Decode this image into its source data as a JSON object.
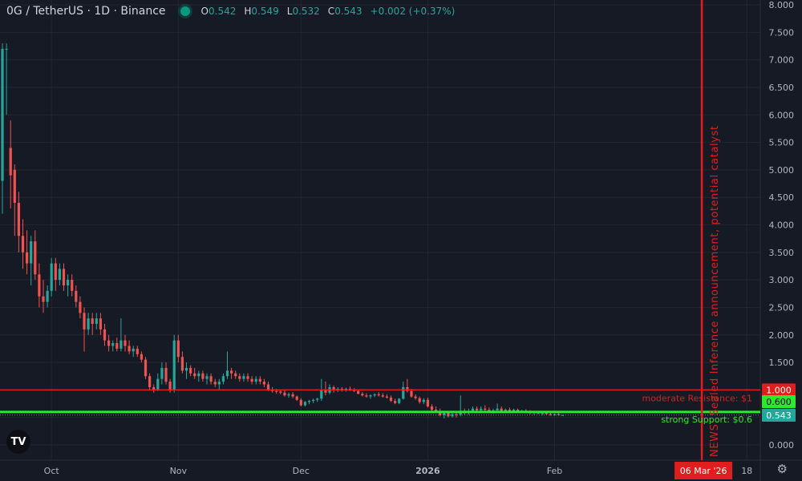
{
  "legend": {
    "symbol": "0G / TetherUS · 1D · Binance",
    "o_label": "O",
    "o_value": "0.542",
    "h_label": "H",
    "h_value": "0.549",
    "l_label": "L",
    "l_value": "0.532",
    "c_label": "C",
    "c_value": "0.543",
    "change": "+0.002 (+0.37%)"
  },
  "logo_text": "TV",
  "icons": {
    "status": "status-dot-icon",
    "settings": "settings-gear-icon",
    "logo": "tradingview-logo-icon"
  },
  "colors": {
    "background": "#161a25",
    "up": "#26a69a",
    "down": "#ef5350",
    "resistance": "#e01e1e",
    "support": "#2ee82e",
    "event": "#e01e1e"
  },
  "chart_data": {
    "type": "candlestick",
    "y_ticks": [
      "0.000",
      "0.500",
      "1.000",
      "1.500",
      "2.000",
      "2.500",
      "3.000",
      "3.500",
      "4.000",
      "4.500",
      "5.000",
      "5.500",
      "6.000",
      "6.500",
      "7.000",
      "7.500",
      "8.000"
    ],
    "ylim": [
      0,
      8
    ],
    "x_ticks": [
      {
        "label": "Oct",
        "day": 12
      },
      {
        "label": "Nov",
        "day": 43
      },
      {
        "label": "Dec",
        "day": 73
      },
      {
        "label": "2026",
        "day": 104
      },
      {
        "label": "Feb",
        "day": 135
      },
      {
        "label": "18",
        "day": 182
      }
    ],
    "last_price": 0.543,
    "resistance": {
      "value": 1.0,
      "price_label": "1.000",
      "label": "moderate Resistance: $1"
    },
    "support": {
      "value": 0.6,
      "price_label": "0.600",
      "label": "strong Support: $0.6"
    },
    "last_price_label": "0.543",
    "event": {
      "day": 171,
      "date_label": "06 Mar '26",
      "label": "NEWS: Sealed Inference announcement, potential catalyst"
    },
    "candles": [
      [
        4.8,
        7.3,
        4.2,
        7.2
      ],
      [
        7.2,
        7.3,
        6.0,
        7.2
      ],
      [
        5.4,
        5.9,
        4.3,
        4.9
      ],
      [
        5.0,
        5.1,
        3.8,
        4.4
      ],
      [
        4.4,
        4.6,
        3.5,
        3.8
      ],
      [
        3.8,
        4.1,
        3.2,
        3.5
      ],
      [
        3.5,
        3.9,
        3.1,
        3.3
      ],
      [
        3.3,
        3.8,
        2.9,
        3.7
      ],
      [
        3.7,
        3.9,
        3.0,
        3.1
      ],
      [
        3.1,
        3.3,
        2.5,
        2.7
      ],
      [
        2.7,
        3.0,
        2.4,
        2.6
      ],
      [
        2.6,
        2.9,
        2.5,
        2.8
      ],
      [
        2.8,
        3.4,
        2.7,
        3.3
      ],
      [
        3.3,
        3.4,
        2.8,
        3.0
      ],
      [
        3.0,
        3.3,
        2.9,
        3.2
      ],
      [
        3.2,
        3.3,
        2.8,
        2.9
      ],
      [
        2.9,
        3.1,
        2.7,
        3.0
      ],
      [
        3.0,
        3.1,
        2.7,
        2.8
      ],
      [
        2.8,
        2.9,
        2.5,
        2.6
      ],
      [
        2.6,
        2.7,
        2.3,
        2.4
      ],
      [
        2.4,
        2.5,
        1.7,
        2.1
      ],
      [
        2.1,
        2.4,
        2.0,
        2.3
      ],
      [
        2.3,
        2.4,
        2.0,
        2.2
      ],
      [
        2.2,
        2.4,
        2.1,
        2.3
      ],
      [
        2.3,
        2.4,
        2.0,
        2.1
      ],
      [
        2.1,
        2.2,
        1.8,
        1.9
      ],
      [
        1.9,
        2.0,
        1.7,
        1.8
      ],
      [
        1.8,
        1.9,
        1.7,
        1.85
      ],
      [
        1.85,
        1.95,
        1.7,
        1.75
      ],
      [
        1.75,
        2.3,
        1.7,
        1.9
      ],
      [
        1.9,
        2.0,
        1.7,
        1.8
      ],
      [
        1.8,
        1.9,
        1.65,
        1.7
      ],
      [
        1.7,
        1.8,
        1.6,
        1.75
      ],
      [
        1.75,
        1.8,
        1.6,
        1.65
      ],
      [
        1.65,
        1.7,
        1.5,
        1.55
      ],
      [
        1.55,
        1.6,
        1.2,
        1.25
      ],
      [
        1.25,
        1.3,
        1.0,
        1.05
      ],
      [
        1.05,
        1.1,
        0.95,
        1.0
      ],
      [
        1.0,
        1.3,
        0.98,
        1.2
      ],
      [
        1.2,
        1.5,
        1.1,
        1.4
      ],
      [
        1.4,
        1.5,
        1.1,
        1.15
      ],
      [
        1.15,
        1.2,
        0.95,
        1.0
      ],
      [
        1.0,
        2.0,
        0.95,
        1.9
      ],
      [
        1.9,
        2.0,
        1.5,
        1.6
      ],
      [
        1.6,
        1.7,
        1.3,
        1.35
      ],
      [
        1.35,
        1.5,
        1.2,
        1.4
      ],
      [
        1.4,
        1.45,
        1.25,
        1.3
      ],
      [
        1.3,
        1.4,
        1.2,
        1.25
      ],
      [
        1.25,
        1.35,
        1.15,
        1.3
      ],
      [
        1.3,
        1.35,
        1.15,
        1.2
      ],
      [
        1.2,
        1.3,
        1.1,
        1.25
      ],
      [
        1.25,
        1.3,
        1.1,
        1.15
      ],
      [
        1.15,
        1.2,
        1.05,
        1.1
      ],
      [
        1.1,
        1.2,
        1.0,
        1.15
      ],
      [
        1.15,
        1.3,
        1.1,
        1.25
      ],
      [
        1.25,
        1.7,
        1.2,
        1.35
      ],
      [
        1.35,
        1.4,
        1.2,
        1.3
      ],
      [
        1.3,
        1.35,
        1.2,
        1.25
      ],
      [
        1.25,
        1.3,
        1.15,
        1.2
      ],
      [
        1.2,
        1.3,
        1.15,
        1.25
      ],
      [
        1.25,
        1.3,
        1.15,
        1.2
      ],
      [
        1.2,
        1.25,
        1.1,
        1.15
      ],
      [
        1.15,
        1.25,
        1.1,
        1.2
      ],
      [
        1.2,
        1.25,
        1.1,
        1.15
      ],
      [
        1.15,
        1.2,
        1.05,
        1.1
      ],
      [
        1.1,
        1.15,
        0.98,
        1.0
      ],
      [
        1.0,
        1.05,
        0.95,
        0.98
      ],
      [
        0.98,
        1.02,
        0.93,
        0.97
      ],
      [
        0.97,
        1.0,
        0.92,
        0.95
      ],
      [
        0.95,
        1.0,
        0.88,
        0.9
      ],
      [
        0.9,
        0.95,
        0.86,
        0.92
      ],
      [
        0.92,
        0.96,
        0.85,
        0.88
      ],
      [
        0.88,
        0.9,
        0.8,
        0.82
      ],
      [
        0.82,
        0.85,
        0.7,
        0.72
      ],
      [
        0.72,
        0.8,
        0.7,
        0.78
      ],
      [
        0.78,
        0.82,
        0.74,
        0.8
      ],
      [
        0.8,
        0.84,
        0.76,
        0.82
      ],
      [
        0.82,
        0.86,
        0.78,
        0.84
      ],
      [
        0.84,
        1.2,
        0.8,
        1.0
      ],
      [
        1.0,
        1.15,
        0.9,
        0.95
      ],
      [
        0.95,
        1.1,
        0.92,
        1.05
      ],
      [
        1.05,
        1.08,
        0.95,
        1.0
      ],
      [
        1.0,
        1.05,
        0.96,
        1.02
      ],
      [
        1.02,
        1.05,
        0.97,
        0.99
      ],
      [
        0.99,
        1.04,
        0.97,
        1.02
      ],
      [
        1.02,
        1.06,
        0.98,
        1.0
      ],
      [
        1.0,
        1.03,
        0.96,
        0.98
      ],
      [
        0.98,
        1.0,
        0.92,
        0.93
      ],
      [
        0.93,
        0.96,
        0.88,
        0.9
      ],
      [
        0.9,
        0.94,
        0.86,
        0.88
      ],
      [
        0.88,
        0.92,
        0.84,
        0.9
      ],
      [
        0.9,
        0.94,
        0.87,
        0.92
      ],
      [
        0.92,
        0.96,
        0.88,
        0.9
      ],
      [
        0.9,
        0.94,
        0.86,
        0.88
      ],
      [
        0.88,
        0.92,
        0.84,
        0.86
      ],
      [
        0.86,
        0.9,
        0.78,
        0.8
      ],
      [
        0.8,
        0.84,
        0.74,
        0.76
      ],
      [
        0.76,
        0.85,
        0.74,
        0.84
      ],
      [
        0.84,
        1.15,
        0.82,
        1.05
      ],
      [
        1.05,
        1.2,
        0.95,
        0.98
      ],
      [
        0.98,
        1.02,
        0.86,
        0.88
      ],
      [
        0.88,
        0.92,
        0.82,
        0.85
      ],
      [
        0.85,
        0.88,
        0.75,
        0.78
      ],
      [
        0.78,
        0.85,
        0.74,
        0.82
      ],
      [
        0.82,
        0.86,
        0.68,
        0.7
      ],
      [
        0.7,
        0.74,
        0.62,
        0.64
      ],
      [
        0.64,
        0.7,
        0.6,
        0.62
      ],
      [
        0.62,
        0.66,
        0.52,
        0.54
      ],
      [
        0.54,
        0.6,
        0.48,
        0.58
      ],
      [
        0.58,
        0.62,
        0.5,
        0.52
      ],
      [
        0.52,
        0.58,
        0.5,
        0.56
      ],
      [
        0.56,
        0.6,
        0.5,
        0.55
      ],
      [
        0.55,
        0.9,
        0.52,
        0.62
      ],
      [
        0.62,
        0.66,
        0.55,
        0.6
      ],
      [
        0.6,
        0.66,
        0.55,
        0.62
      ],
      [
        0.62,
        0.7,
        0.58,
        0.66
      ],
      [
        0.66,
        0.7,
        0.6,
        0.63
      ],
      [
        0.63,
        0.7,
        0.6,
        0.66
      ],
      [
        0.66,
        0.72,
        0.62,
        0.64
      ],
      [
        0.64,
        0.68,
        0.58,
        0.6
      ],
      [
        0.6,
        0.66,
        0.57,
        0.63
      ],
      [
        0.63,
        0.75,
        0.6,
        0.66
      ],
      [
        0.66,
        0.7,
        0.6,
        0.62
      ],
      [
        0.62,
        0.66,
        0.58,
        0.64
      ],
      [
        0.64,
        0.68,
        0.6,
        0.62
      ],
      [
        0.62,
        0.66,
        0.59,
        0.64
      ],
      [
        0.64,
        0.66,
        0.6,
        0.61
      ],
      [
        0.61,
        0.64,
        0.58,
        0.62
      ],
      [
        0.62,
        0.65,
        0.58,
        0.6
      ],
      [
        0.6,
        0.63,
        0.56,
        0.58
      ],
      [
        0.58,
        0.62,
        0.55,
        0.6
      ],
      [
        0.6,
        0.62,
        0.56,
        0.57
      ],
      [
        0.57,
        0.6,
        0.54,
        0.58
      ],
      [
        0.58,
        0.6,
        0.55,
        0.56
      ],
      [
        0.56,
        0.58,
        0.53,
        0.55
      ],
      [
        0.55,
        0.57,
        0.53,
        0.56
      ],
      [
        0.56,
        0.58,
        0.53,
        0.54
      ],
      [
        0.542,
        0.549,
        0.532,
        0.543
      ]
    ]
  }
}
